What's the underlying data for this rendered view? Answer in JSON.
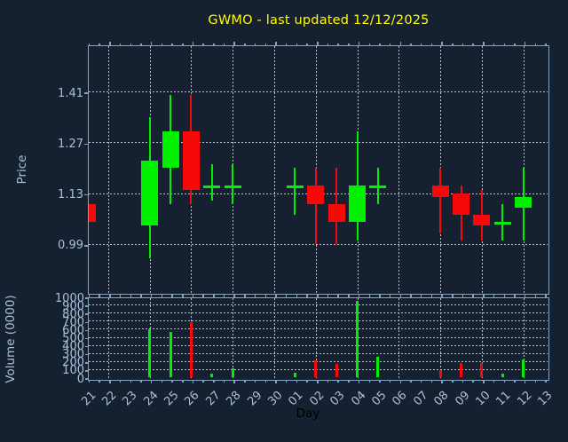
{
  "title": "GWMO - last updated 12/12/2025",
  "colors": {
    "background": "#152030",
    "title_text": "#ffff00",
    "axis_line": "#7fa5c9",
    "tick_text": "#a8c0d8",
    "grid_line": "#b9c2ca",
    "xlabel_text": "#000000",
    "up": "#00f000",
    "down": "#f80808"
  },
  "chart_data": [
    {
      "type": "candlestick",
      "title": "GWMO - last updated 12/12/2025",
      "xlabel": "Day",
      "ylabel": "Price",
      "categories": [
        "21",
        "22",
        "23",
        "24",
        "25",
        "26",
        "27",
        "28",
        "29",
        "30",
        "01",
        "02",
        "03",
        "04",
        "05",
        "06",
        "07",
        "08",
        "09",
        "10",
        "11",
        "12",
        "13"
      ],
      "ytick_labels": [
        "1.41",
        "1.27",
        "1.13",
        "0.99"
      ],
      "yticks": [
        1.41,
        1.27,
        1.13,
        0.99
      ],
      "ylim": [
        0.86,
        1.54
      ],
      "grid": "dashed grid at yticks and at even-numbered days",
      "legend": "none",
      "candles": [
        {
          "day": "21",
          "open": 1.1,
          "high": 1.1,
          "low": 1.05,
          "close": 1.05,
          "direction": "down"
        },
        {
          "day": "24",
          "open": 1.04,
          "high": 1.34,
          "low": 0.95,
          "close": 1.22,
          "direction": "up"
        },
        {
          "day": "25",
          "open": 1.2,
          "high": 1.4,
          "low": 1.1,
          "close": 1.3,
          "direction": "up"
        },
        {
          "day": "26",
          "open": 1.3,
          "high": 1.4,
          "low": 1.1,
          "close": 1.14,
          "direction": "down"
        },
        {
          "day": "27",
          "open": 1.15,
          "high": 1.21,
          "low": 1.11,
          "close": 1.15,
          "direction": "up"
        },
        {
          "day": "28",
          "open": 1.15,
          "high": 1.21,
          "low": 1.1,
          "close": 1.15,
          "direction": "up"
        },
        {
          "day": "01",
          "open": 1.15,
          "high": 1.2,
          "low": 1.07,
          "close": 1.15,
          "direction": "up"
        },
        {
          "day": "02",
          "open": 1.15,
          "high": 1.2,
          "low": 0.99,
          "close": 1.1,
          "direction": "down"
        },
        {
          "day": "03",
          "open": 1.1,
          "high": 1.2,
          "low": 0.99,
          "close": 1.05,
          "direction": "down"
        },
        {
          "day": "04",
          "open": 1.05,
          "high": 1.3,
          "low": 1.0,
          "close": 1.15,
          "direction": "up"
        },
        {
          "day": "05",
          "open": 1.15,
          "high": 1.2,
          "low": 1.1,
          "close": 1.15,
          "direction": "up"
        },
        {
          "day": "08",
          "open": 1.15,
          "high": 1.2,
          "low": 1.02,
          "close": 1.12,
          "direction": "down"
        },
        {
          "day": "09",
          "open": 1.13,
          "high": 1.15,
          "low": 1.0,
          "close": 1.07,
          "direction": "down"
        },
        {
          "day": "10",
          "open": 1.07,
          "high": 1.14,
          "low": 1.0,
          "close": 1.04,
          "direction": "down"
        },
        {
          "day": "11",
          "open": 1.05,
          "high": 1.1,
          "low": 1.0,
          "close": 1.05,
          "direction": "up"
        },
        {
          "day": "12",
          "open": 1.09,
          "high": 1.2,
          "low": 1.0,
          "close": 1.12,
          "direction": "up"
        }
      ]
    },
    {
      "type": "bar",
      "ylabel": "Volume (0000)",
      "ytick_labels": [
        "1000",
        "900",
        "800",
        "700",
        "600",
        "500",
        "400",
        "300",
        "200",
        "100",
        "0"
      ],
      "yticks": [
        1000,
        900,
        800,
        700,
        600,
        500,
        400,
        300,
        200,
        100,
        0
      ],
      "ylim": [
        0,
        1000
      ],
      "bars": [
        {
          "day": "24",
          "value": 590,
          "direction": "up"
        },
        {
          "day": "25",
          "value": 560,
          "direction": "up"
        },
        {
          "day": "26",
          "value": 680,
          "direction": "down"
        },
        {
          "day": "27",
          "value": 40,
          "direction": "up"
        },
        {
          "day": "28",
          "value": 110,
          "direction": "up"
        },
        {
          "day": "01",
          "value": 50,
          "direction": "up"
        },
        {
          "day": "02",
          "value": 210,
          "direction": "down"
        },
        {
          "day": "03",
          "value": 170,
          "direction": "down"
        },
        {
          "day": "04",
          "value": 950,
          "direction": "up"
        },
        {
          "day": "05",
          "value": 250,
          "direction": "up"
        },
        {
          "day": "08",
          "value": 90,
          "direction": "down"
        },
        {
          "day": "09",
          "value": 180,
          "direction": "down"
        },
        {
          "day": "10",
          "value": 180,
          "direction": "down"
        },
        {
          "day": "11",
          "value": 40,
          "direction": "up"
        },
        {
          "day": "12",
          "value": 220,
          "direction": "up"
        }
      ]
    }
  ]
}
